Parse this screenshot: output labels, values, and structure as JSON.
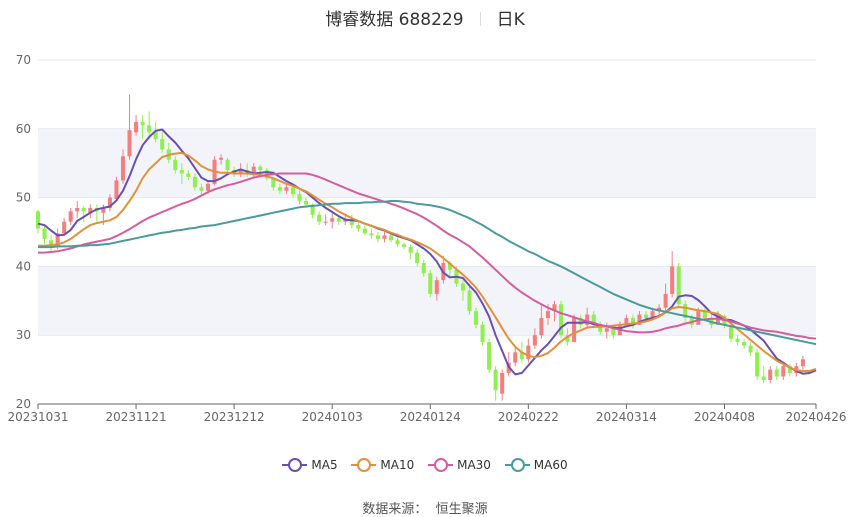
{
  "header": {
    "title": "博睿数据 688229",
    "period": "日K"
  },
  "source": {
    "label": "数据来源：",
    "name": "恒生聚源"
  },
  "colors": {
    "up": "#f08080",
    "down": "#90ee50",
    "grid": "#e6e8f0",
    "band": "#f3f4fa"
  },
  "chart_data": {
    "type": "candlestick",
    "title": "博睿数据 688229",
    "ylim": [
      20,
      70
    ],
    "yticks": [
      20,
      30,
      40,
      50,
      60,
      70
    ],
    "xtick_labels": [
      "20231031",
      "20231121",
      "20231212",
      "20240103",
      "20240124",
      "20240222",
      "20240314",
      "20240408",
      "20240426"
    ],
    "dates": [
      "20231031",
      "20231101",
      "20231102",
      "20231103",
      "20231106",
      "20231107",
      "20231108",
      "20231109",
      "20231110",
      "20231113",
      "20231114",
      "20231115",
      "20231116",
      "20231117",
      "20231120",
      "20231121",
      "20231122",
      "20231123",
      "20231124",
      "20231127",
      "20231128",
      "20231129",
      "20231130",
      "20231201",
      "20231204",
      "20231205",
      "20231206",
      "20231207",
      "20231208",
      "20231211",
      "20231212",
      "20231213",
      "20231214",
      "20231215",
      "20231218",
      "20231219",
      "20231220",
      "20231221",
      "20231222",
      "20231225",
      "20231226",
      "20231227",
      "20231228",
      "20231229",
      "20240102",
      "20240103",
      "20240104",
      "20240105",
      "20240108",
      "20240109",
      "20240110",
      "20240111",
      "20240112",
      "20240115",
      "20240116",
      "20240117",
      "20240118",
      "20240119",
      "20240122",
      "20240123",
      "20240124",
      "20240125",
      "20240126",
      "20240129",
      "20240130",
      "20240131",
      "20240201",
      "20240202",
      "20240205",
      "20240206",
      "20240207",
      "20240208",
      "20240219",
      "20240220",
      "20240221",
      "20240222",
      "20240223",
      "20240226",
      "20240227",
      "20240228",
      "20240229",
      "20240301",
      "20240304",
      "20240305",
      "20240306",
      "20240307",
      "20240308",
      "20240311",
      "20240312",
      "20240313",
      "20240314",
      "20240315",
      "20240318",
      "20240319",
      "20240320",
      "20240321",
      "20240322",
      "20240325",
      "20240326",
      "20240327",
      "20240328",
      "20240329",
      "20240401",
      "20240402",
      "20240403",
      "20240408",
      "20240409",
      "20240410",
      "20240411",
      "20240412",
      "20240415",
      "20240416",
      "20240417",
      "20240418",
      "20240419",
      "20240422",
      "20240423",
      "20240424",
      "20240425",
      "20240426"
    ],
    "candles": [
      [
        48,
        45.5,
        48.2,
        44.8
      ],
      [
        45.5,
        44,
        46,
        43.2
      ],
      [
        43.8,
        43,
        44.5,
        42
      ],
      [
        43,
        44.8,
        45.5,
        42.5
      ],
      [
        44.8,
        46.5,
        47,
        44.5
      ],
      [
        46.5,
        48,
        48.5,
        46
      ],
      [
        48,
        48.5,
        49.5,
        47
      ],
      [
        48.5,
        48,
        48.8,
        46.5
      ],
      [
        47.8,
        48.5,
        49,
        47
      ],
      [
        48.5,
        48,
        49,
        46.5
      ],
      [
        47.8,
        48.5,
        49,
        46
      ],
      [
        48.5,
        50,
        50.5,
        48
      ],
      [
        49.8,
        52.5,
        53,
        49.5
      ],
      [
        52.5,
        56,
        57,
        52
      ],
      [
        56,
        59.8,
        65,
        55.5
      ],
      [
        59.5,
        61,
        62,
        59
      ],
      [
        61,
        60.5,
        62,
        58.5
      ],
      [
        60.5,
        59.5,
        62.5,
        58.5
      ],
      [
        59.5,
        58.5,
        61,
        58
      ],
      [
        58.5,
        57,
        59.5,
        56.5
      ],
      [
        57,
        55.5,
        58,
        55
      ],
      [
        55.5,
        54,
        56,
        53.5
      ],
      [
        54,
        53.5,
        55,
        52
      ],
      [
        53.5,
        53,
        54,
        52.5
      ],
      [
        53,
        51.5,
        53.5,
        51
      ],
      [
        51.5,
        51,
        52,
        50.5
      ],
      [
        51,
        52,
        52.5,
        50.5
      ],
      [
        52,
        55.5,
        56,
        51.8
      ],
      [
        55.5,
        55.8,
        56.3,
        54.8
      ],
      [
        55.5,
        54,
        55.8,
        53.5
      ],
      [
        54,
        53.5,
        54.5,
        53
      ],
      [
        53.5,
        54,
        55,
        53
      ],
      [
        54,
        53.5,
        55,
        53
      ],
      [
        53.5,
        54.5,
        55,
        53
      ],
      [
        54.5,
        54,
        54.8,
        53
      ],
      [
        54,
        52.8,
        54.3,
        52.5
      ],
      [
        52.8,
        51.5,
        53,
        51
      ],
      [
        51.5,
        51,
        52,
        50.5
      ],
      [
        51,
        51.5,
        52,
        50.5
      ],
      [
        51.5,
        50.5,
        51.8,
        50
      ],
      [
        50.5,
        49.5,
        51,
        49
      ],
      [
        49.5,
        49,
        50,
        48.5
      ],
      [
        49,
        47.5,
        49.2,
        47
      ],
      [
        47.5,
        46.5,
        48,
        46
      ],
      [
        46.5,
        46.5,
        47.5,
        46
      ],
      [
        46.5,
        47,
        48,
        45.5
      ],
      [
        47,
        46.5,
        47.5,
        46
      ],
      [
        46.5,
        46.8,
        47.5,
        46
      ],
      [
        46.8,
        46,
        47.5,
        45.5
      ],
      [
        46,
        45.5,
        46.5,
        45
      ],
      [
        45.5,
        44.8,
        46,
        44.5
      ],
      [
        44.8,
        44.5,
        45.5,
        44
      ],
      [
        44.5,
        44,
        45,
        43.5
      ],
      [
        44,
        44.5,
        45,
        43.5
      ],
      [
        44.5,
        43.8,
        44.8,
        43.5
      ],
      [
        43.8,
        43.2,
        44.2,
        42.8
      ],
      [
        43.2,
        42.8,
        43.5,
        42.5
      ],
      [
        42.8,
        42,
        43.2,
        41
      ],
      [
        42,
        40.5,
        42.5,
        40
      ],
      [
        40.5,
        39,
        41,
        38.5
      ],
      [
        39,
        36,
        39.5,
        35.5
      ],
      [
        36,
        38,
        38.5,
        35
      ],
      [
        38,
        40.5,
        41.5,
        37.5
      ],
      [
        40.5,
        39.5,
        40.8,
        38.5
      ],
      [
        39.5,
        37.5,
        40,
        37
      ],
      [
        37.5,
        36.5,
        38,
        35
      ],
      [
        36.5,
        33.5,
        37,
        33
      ],
      [
        33.5,
        31.5,
        34,
        31
      ],
      [
        31.5,
        29,
        32,
        28.5
      ],
      [
        29,
        25,
        29.5,
        24.5
      ],
      [
        25,
        22,
        25.5,
        20.5
      ],
      [
        21.5,
        24.5,
        25,
        20.5
      ],
      [
        24.5,
        26,
        27.5,
        24
      ],
      [
        26,
        27.5,
        28.5,
        25.5
      ],
      [
        27.5,
        26.5,
        29,
        26
      ],
      [
        26.5,
        28.5,
        29.5,
        26
      ],
      [
        28.5,
        30,
        31,
        28
      ],
      [
        30,
        32.5,
        34.5,
        29.5
      ],
      [
        32.5,
        33.5,
        34.5,
        31.5
      ],
      [
        33.5,
        34.5,
        35,
        32
      ],
      [
        34.5,
        30,
        35,
        29.5
      ],
      [
        30,
        29,
        31,
        28.5
      ],
      [
        29,
        32.5,
        33,
        29
      ],
      [
        32.5,
        31.5,
        33,
        31
      ],
      [
        31.5,
        33,
        34,
        31
      ],
      [
        33,
        31.5,
        33.5,
        31
      ],
      [
        31.5,
        30.5,
        32,
        30
      ],
      [
        30.5,
        31,
        31.8,
        29.5
      ],
      [
        31,
        30,
        31.5,
        29.5
      ],
      [
        30,
        31.5,
        32,
        30
      ],
      [
        31.5,
        32.5,
        33,
        31.5
      ],
      [
        32.5,
        31.5,
        33,
        31
      ],
      [
        31.5,
        33,
        33.5,
        31.5
      ],
      [
        33,
        32.5,
        33.5,
        32
      ],
      [
        32.5,
        33.5,
        34,
        32.5
      ],
      [
        33.5,
        34,
        34.5,
        33
      ],
      [
        34,
        36,
        37.5,
        33.5
      ],
      [
        36,
        40,
        42.2,
        35.5
      ],
      [
        40,
        34.5,
        40.5,
        34
      ],
      [
        34.5,
        32.5,
        35,
        32
      ],
      [
        32.5,
        31.5,
        33,
        31
      ],
      [
        31.5,
        33.5,
        34,
        31.5
      ],
      [
        33.5,
        32.5,
        34,
        32
      ],
      [
        32.5,
        31.5,
        33,
        31
      ],
      [
        31.5,
        32.8,
        33.5,
        31.5
      ],
      [
        32.8,
        31.5,
        33,
        31
      ],
      [
        31.5,
        29.5,
        32,
        29
      ],
      [
        29.5,
        29,
        30,
        28.5
      ],
      [
        29,
        28.5,
        29.5,
        28
      ],
      [
        28.5,
        27.5,
        29,
        27
      ],
      [
        27.5,
        24,
        28,
        23.5
      ],
      [
        24,
        23.5,
        25.5,
        23
      ],
      [
        23.5,
        25,
        25.5,
        23
      ],
      [
        25,
        24,
        25.5,
        23.5
      ],
      [
        24,
        25.5,
        26,
        23.5
      ],
      [
        25.5,
        24.5,
        25.8,
        24
      ],
      [
        24.5,
        25.5,
        26,
        24
      ],
      [
        25.5,
        26.5,
        27,
        25
      ]
    ],
    "series": [
      {
        "name": "MA5",
        "color": "#6a4fae",
        "values": [
          46.2,
          46.0,
          45.2,
          44.5,
          44.6,
          45.3,
          46.6,
          47.2,
          47.8,
          48.3,
          48.5,
          48.7,
          49.6,
          51.0,
          53.1,
          55.6,
          57.6,
          58.8,
          59.7,
          59.9,
          58.9,
          58.0,
          56.8,
          55.7,
          54.3,
          52.9,
          52.4,
          52.4,
          52.8,
          53.4,
          53.8,
          54.1,
          53.8,
          53.5,
          53.6,
          53.7,
          53.6,
          53.0,
          52.4,
          51.9,
          51.3,
          50.8,
          50.0,
          49.2,
          48.5,
          47.9,
          47.3,
          46.8,
          46.7,
          46.6,
          46.2,
          45.9,
          45.5,
          45.2,
          44.8,
          44.4,
          44.1,
          43.8,
          43.2,
          42.6,
          41.8,
          40.7,
          39.1,
          38.4,
          38.5,
          38.3,
          37.2,
          36.2,
          34.6,
          32.7,
          30.0,
          27.7,
          25.4,
          24.3,
          24.5,
          25.6,
          26.7,
          27.8,
          28.7,
          29.9,
          31.1,
          31.8,
          31.8,
          31.8,
          31.9,
          31.6,
          31.4,
          31.3,
          31.1,
          31.0,
          31.3,
          31.5,
          31.9,
          32.3,
          32.5,
          32.8,
          33.3,
          34.2,
          35.6,
          35.8,
          35.7,
          35.1,
          34.2,
          33.2,
          32.7,
          32.3,
          32.2,
          31.8,
          31.4,
          30.8,
          30.0,
          29.2,
          27.9,
          26.6,
          26.0,
          25.3,
          24.8,
          24.4,
          24.5,
          24.9
        ]
      },
      {
        "name": "MA10",
        "color": "#e0913b",
        "values": [
          43.0,
          43.0,
          43.1,
          43.2,
          43.5,
          44.0,
          44.7,
          45.4,
          46.0,
          46.3,
          46.5,
          46.7,
          47.2,
          48.2,
          49.5,
          51.0,
          52.8,
          54.1,
          55.0,
          55.9,
          56.2,
          56.4,
          56.5,
          56.1,
          55.4,
          54.6,
          54.1,
          53.8,
          53.6,
          53.6,
          53.5,
          53.5,
          53.5,
          53.4,
          53.3,
          53.1,
          52.8,
          52.4,
          52.0,
          51.7,
          51.3,
          50.9,
          50.3,
          49.7,
          49.1,
          48.6,
          48.0,
          47.5,
          47.0,
          46.6,
          46.2,
          45.9,
          45.6,
          45.3,
          44.9,
          44.6,
          44.2,
          43.9,
          43.5,
          43.1,
          42.6,
          41.9,
          41.2,
          40.4,
          39.6,
          38.8,
          37.9,
          36.9,
          35.6,
          34.1,
          32.6,
          31.0,
          29.5,
          28.3,
          27.5,
          27.0,
          26.8,
          27.0,
          27.4,
          28.2,
          29.1,
          29.8,
          30.3,
          30.7,
          31.1,
          31.2,
          31.2,
          31.3,
          31.4,
          31.5,
          31.6,
          31.7,
          31.8,
          32.0,
          32.3,
          32.7,
          33.3,
          33.9,
          34.1,
          34.0,
          33.8,
          33.6,
          33.5,
          33.3,
          33.1,
          32.5,
          31.7,
          30.9,
          30.1,
          29.3,
          28.5,
          27.7,
          27.0,
          26.3,
          25.8,
          25.3,
          24.9,
          24.8,
          24.8,
          25.1
        ]
      },
      {
        "name": "MA30",
        "color": "#d35d9d",
        "values": [
          42.0,
          42.0,
          42.1,
          42.2,
          42.4,
          42.6,
          42.9,
          43.2,
          43.4,
          43.6,
          43.8,
          44.0,
          44.4,
          44.9,
          45.4,
          46.0,
          46.6,
          47.1,
          47.5,
          47.9,
          48.3,
          48.7,
          49.1,
          49.4,
          49.8,
          50.3,
          50.8,
          51.2,
          51.5,
          51.8,
          52.0,
          52.3,
          52.6,
          52.9,
          53.1,
          53.3,
          53.4,
          53.5,
          53.5,
          53.5,
          53.5,
          53.5,
          53.3,
          53.0,
          52.6,
          52.2,
          51.8,
          51.4,
          51.0,
          50.6,
          50.3,
          50.0,
          49.7,
          49.4,
          49.1,
          48.8,
          48.4,
          48.0,
          47.6,
          47.1,
          46.5,
          45.9,
          45.2,
          44.6,
          44.1,
          43.5,
          42.9,
          42.1,
          41.3,
          40.4,
          39.5,
          38.6,
          37.7,
          36.9,
          36.2,
          35.6,
          35.0,
          34.5,
          34.0,
          33.6,
          33.2,
          32.9,
          32.6,
          32.3,
          32.0,
          31.8,
          31.5,
          31.3,
          31.0,
          30.8,
          30.6,
          30.5,
          30.4,
          30.4,
          30.5,
          30.7,
          31.0,
          31.2,
          31.4,
          31.7,
          31.9,
          32.2,
          32.3,
          32.4,
          32.4,
          32.2,
          32.0,
          31.7,
          31.4,
          31.1,
          30.9,
          30.7,
          30.6,
          30.5,
          30.3,
          30.1,
          29.9,
          29.8,
          29.6,
          29.5
        ]
      },
      {
        "name": "MA60",
        "color": "#4b9a9c",
        "values": [
          42.8,
          42.8,
          42.8,
          42.9,
          42.9,
          42.9,
          43.0,
          43.0,
          43.1,
          43.1,
          43.2,
          43.3,
          43.5,
          43.7,
          43.9,
          44.1,
          44.3,
          44.5,
          44.7,
          44.9,
          45.0,
          45.2,
          45.3,
          45.5,
          45.6,
          45.8,
          45.9,
          46.0,
          46.2,
          46.4,
          46.6,
          46.8,
          47.0,
          47.2,
          47.4,
          47.6,
          47.8,
          48.0,
          48.2,
          48.4,
          48.6,
          48.7,
          48.8,
          48.9,
          49.0,
          49.1,
          49.1,
          49.2,
          49.2,
          49.2,
          49.3,
          49.3,
          49.4,
          49.4,
          49.5,
          49.5,
          49.4,
          49.3,
          49.1,
          49.0,
          48.9,
          48.7,
          48.5,
          48.2,
          47.8,
          47.4,
          47.0,
          46.5,
          46.0,
          45.4,
          44.8,
          44.3,
          43.7,
          43.2,
          42.7,
          42.2,
          41.8,
          41.3,
          40.8,
          40.4,
          40.0,
          39.5,
          39.0,
          38.5,
          38.0,
          37.5,
          37.0,
          36.5,
          36.0,
          35.6,
          35.2,
          34.8,
          34.4,
          34.1,
          33.8,
          33.6,
          33.4,
          33.2,
          33.0,
          32.8,
          32.6,
          32.4,
          32.2,
          31.9,
          31.7,
          31.5,
          31.3,
          31.1,
          30.9,
          30.7,
          30.5,
          30.3,
          30.1,
          29.9,
          29.7,
          29.5,
          29.3,
          29.1,
          28.9,
          28.7
        ]
      }
    ],
    "legend_position": "bottom",
    "grid": true
  }
}
